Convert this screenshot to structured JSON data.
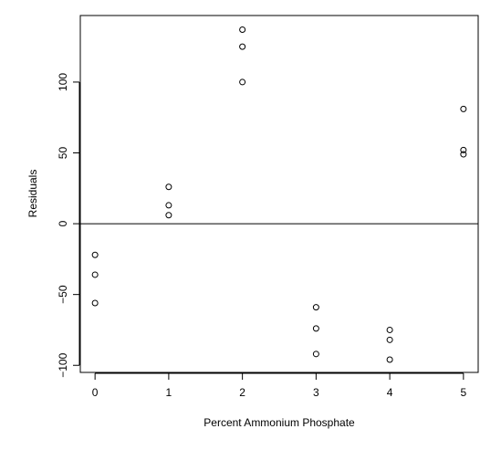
{
  "chart_data": {
    "type": "scatter",
    "title": "",
    "xlabel": "Percent Ammonium Phosphate",
    "ylabel": "Residuals",
    "xlim": [
      -0.2,
      5.2
    ],
    "ylim": [
      -105,
      147
    ],
    "x_ticks": [
      0,
      1,
      2,
      3,
      4,
      5
    ],
    "y_ticks": [
      -100,
      -50,
      0,
      50,
      100
    ],
    "reference_line": {
      "orientation": "horizontal",
      "y": 0
    },
    "grid": false,
    "marker": "open-circle",
    "points": [
      {
        "x": 0,
        "y": -22
      },
      {
        "x": 0,
        "y": -36
      },
      {
        "x": 0,
        "y": -56
      },
      {
        "x": 1,
        "y": 26
      },
      {
        "x": 1,
        "y": 13
      },
      {
        "x": 1,
        "y": 6
      },
      {
        "x": 2,
        "y": 137
      },
      {
        "x": 2,
        "y": 125
      },
      {
        "x": 2,
        "y": 100
      },
      {
        "x": 3,
        "y": -59
      },
      {
        "x": 3,
        "y": -74
      },
      {
        "x": 3,
        "y": -92
      },
      {
        "x": 4,
        "y": -75
      },
      {
        "x": 4,
        "y": -82
      },
      {
        "x": 4,
        "y": -96
      },
      {
        "x": 5,
        "y": 81
      },
      {
        "x": 5,
        "y": 52
      },
      {
        "x": 5,
        "y": 49
      }
    ]
  }
}
